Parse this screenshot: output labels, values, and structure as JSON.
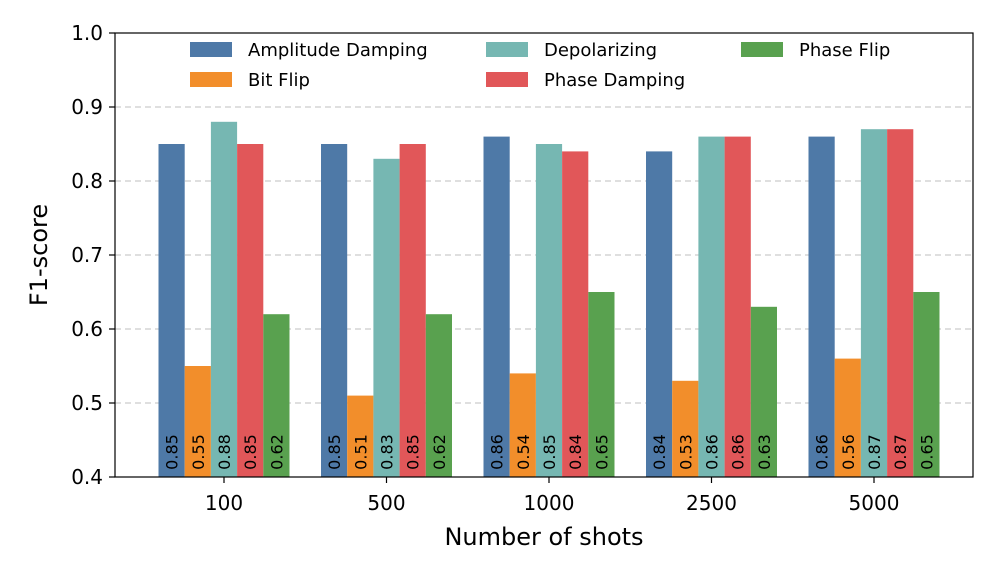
{
  "chart_data": {
    "type": "bar",
    "xlabel": "Number of shots",
    "ylabel": "F1-score",
    "ylim": [
      0.4,
      1.0
    ],
    "yticks": [
      "0.4",
      "0.5",
      "0.6",
      "0.7",
      "0.8",
      "0.9",
      "1.0"
    ],
    "grid": "horizontal dashed",
    "legend_position": "top",
    "categories": [
      "100",
      "500",
      "1000",
      "2500",
      "5000"
    ],
    "series": [
      {
        "name": "Amplitude Damping",
        "color": "#4e79a7",
        "values": [
          0.85,
          0.85,
          0.86,
          0.84,
          0.86
        ],
        "labels": [
          "0.85",
          "0.85",
          "0.86",
          "0.84",
          "0.86"
        ]
      },
      {
        "name": "Bit Flip",
        "color": "#f28e2b",
        "values": [
          0.55,
          0.51,
          0.54,
          0.53,
          0.56
        ],
        "labels": [
          "0.55",
          "0.51",
          "0.54",
          "0.53",
          "0.56"
        ]
      },
      {
        "name": "Depolarizing",
        "color": "#76b7b2",
        "values": [
          0.88,
          0.83,
          0.85,
          0.86,
          0.87
        ],
        "labels": [
          "0.88",
          "0.83",
          "0.85",
          "0.86",
          "0.87"
        ]
      },
      {
        "name": "Phase Damping",
        "color": "#e15759",
        "values": [
          0.85,
          0.85,
          0.84,
          0.86,
          0.87
        ],
        "labels": [
          "0.85",
          "0.85",
          "0.84",
          "0.86",
          "0.87"
        ]
      },
      {
        "name": "Phase Flip",
        "color": "#59a14f",
        "values": [
          0.62,
          0.62,
          0.65,
          0.63,
          0.65
        ],
        "labels": [
          "0.62",
          "0.62",
          "0.65",
          "0.63",
          "0.65"
        ]
      }
    ]
  }
}
